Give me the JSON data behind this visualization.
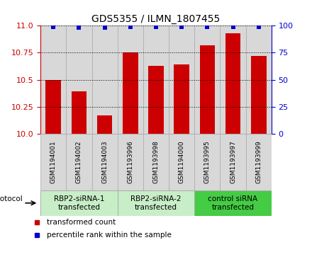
{
  "title": "GDS5355 / ILMN_1807455",
  "samples": [
    "GSM1194001",
    "GSM1194002",
    "GSM1194003",
    "GSM1193996",
    "GSM1193998",
    "GSM1194000",
    "GSM1193995",
    "GSM1193997",
    "GSM1193999"
  ],
  "red_values": [
    10.5,
    10.39,
    10.17,
    10.75,
    10.63,
    10.64,
    10.82,
    10.93,
    10.72
  ],
  "blue_values": [
    99,
    98,
    98,
    99,
    99,
    99,
    99,
    99,
    99
  ],
  "ylim_left": [
    10.0,
    11.0
  ],
  "ylim_right": [
    0,
    100
  ],
  "yticks_left": [
    10.0,
    10.25,
    10.5,
    10.75,
    11.0
  ],
  "yticks_right": [
    0,
    25,
    50,
    75,
    100
  ],
  "groups": [
    {
      "label": "RBP2-siRNA-1\ntransfected",
      "indices": [
        0,
        1,
        2
      ],
      "color": "#c8eec8"
    },
    {
      "label": "RBP2-siRNA-2\ntransfected",
      "indices": [
        3,
        4,
        5
      ],
      "color": "#c8eec8"
    },
    {
      "label": "control siRNA\ntransfected",
      "indices": [
        6,
        7,
        8
      ],
      "color": "#44cc44"
    }
  ],
  "bar_color": "#cc0000",
  "dot_color": "#0000cc",
  "legend_items": [
    {
      "color": "#cc0000",
      "label": "transformed count"
    },
    {
      "color": "#0000cc",
      "label": "percentile rank within the sample"
    }
  ],
  "tick_label_color": "#cc0000",
  "right_axis_color": "#0000cc",
  "cell_bg_color": "#d8d8d8",
  "cell_edge_color": "#aaaaaa"
}
